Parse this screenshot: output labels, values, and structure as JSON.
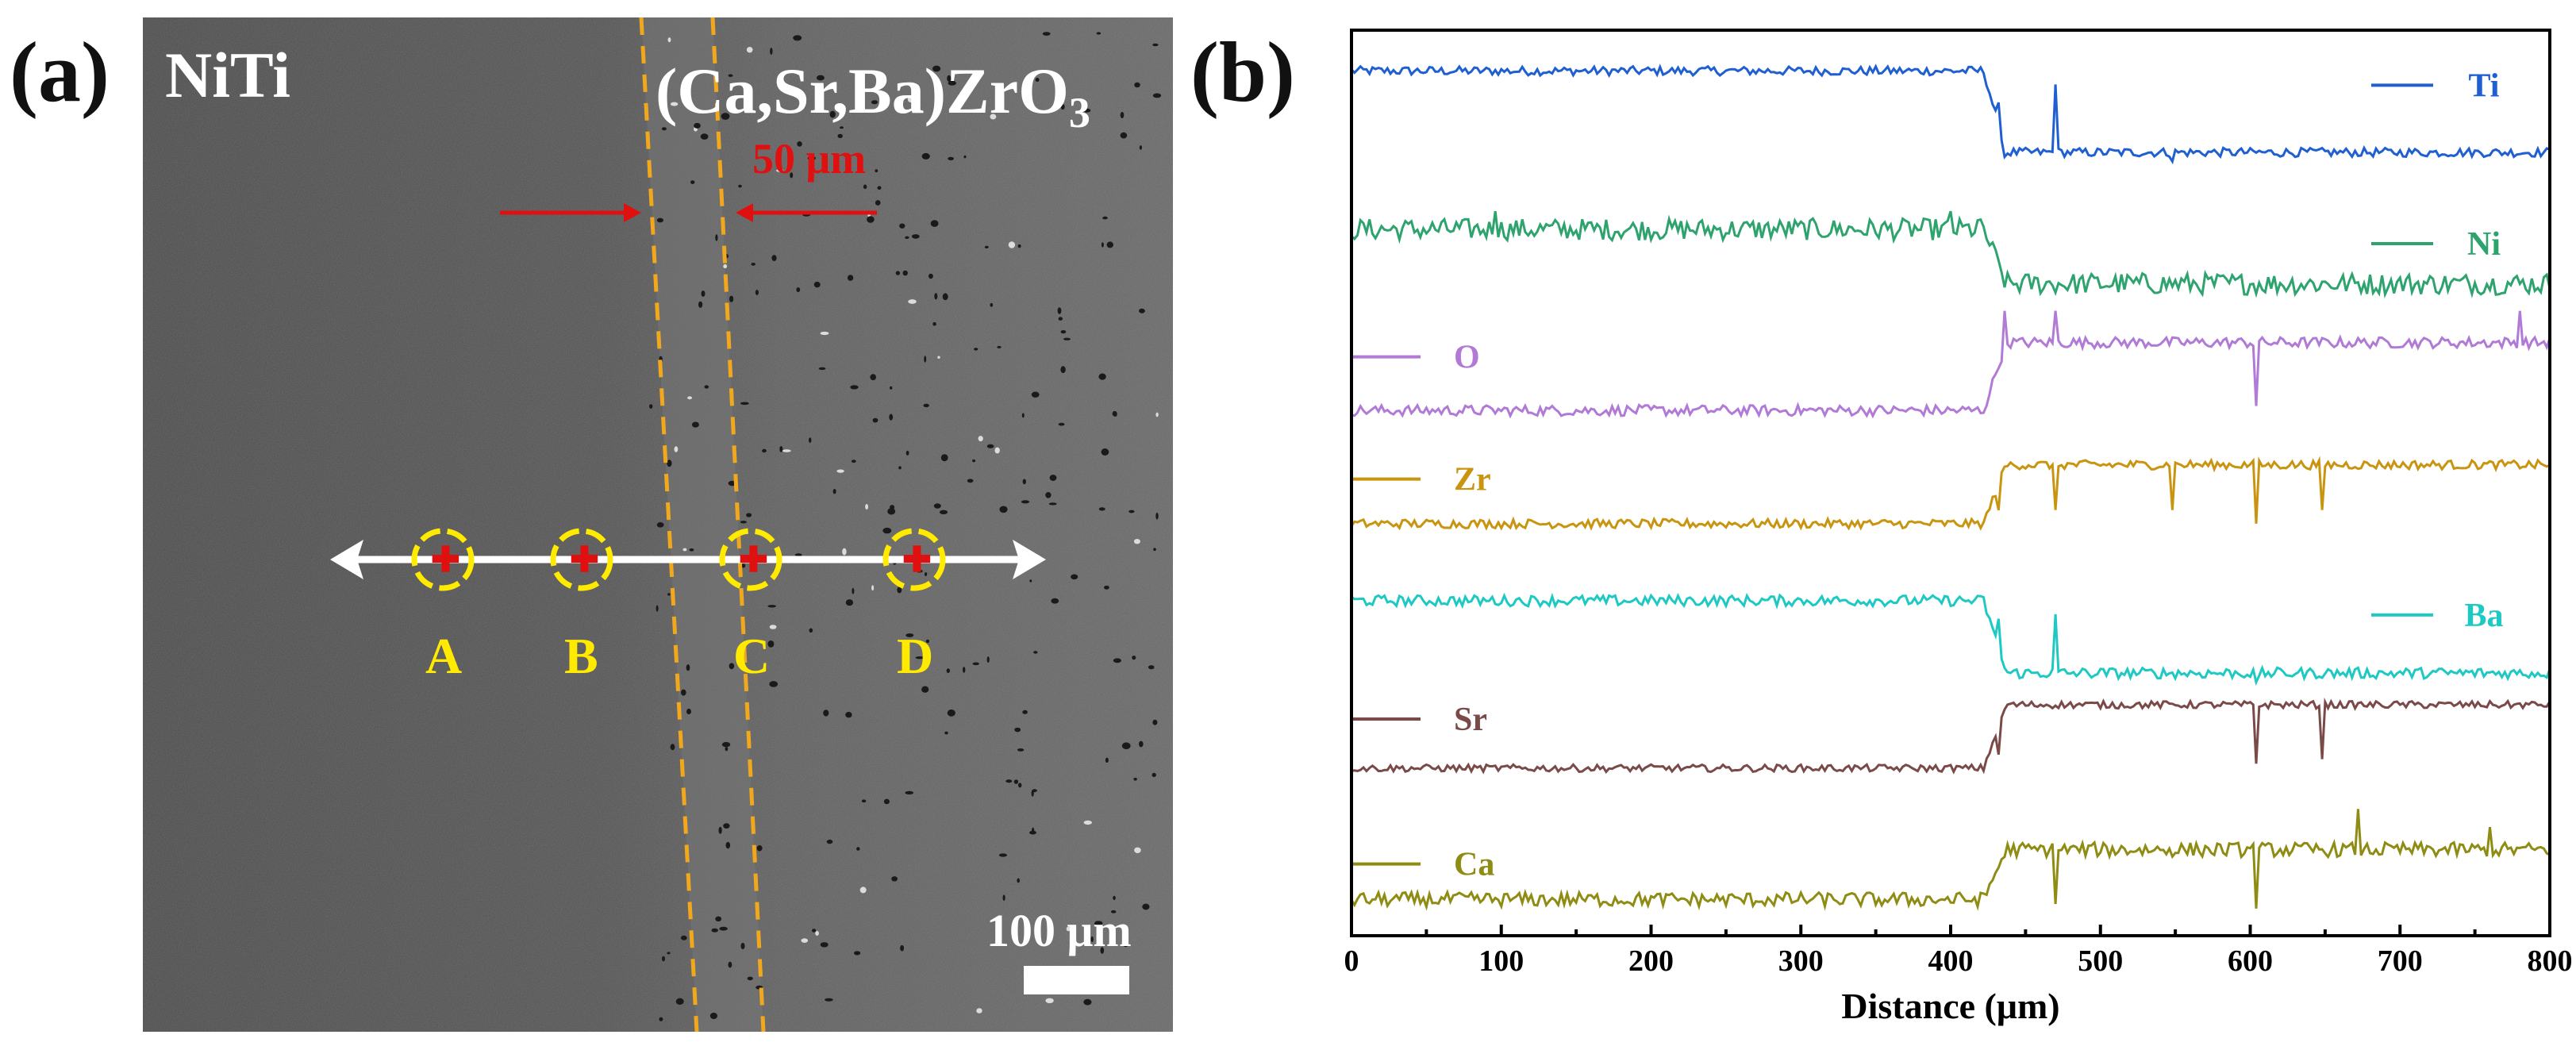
{
  "panel_a": {
    "label": "(a)",
    "title_left": "NiTi",
    "title_right": "(Ca,Sr,Ba)ZrO",
    "title_right_sub": "3",
    "interface_width": "50 μm",
    "scale_bar": "100 μm",
    "points": [
      "A",
      "B",
      "C",
      "D"
    ],
    "colors": {
      "arrow": "#ffffff",
      "point": "#e01010",
      "ring": "#ffea00",
      "interface_line": "#f2a81d",
      "width_arrow": "#e01010"
    }
  },
  "panel_b": {
    "label": "(b)"
  },
  "chart_data": {
    "type": "line",
    "title": "",
    "xlabel": "Distance (μm)",
    "ylabel": "",
    "xlim": [
      0,
      800
    ],
    "xticks": [
      0,
      100,
      200,
      300,
      400,
      500,
      600,
      700,
      800
    ],
    "interface_x": 425,
    "series": [
      {
        "name": "Ti",
        "color": "#1f5fd1",
        "left_level": 0.955,
        "right_level": 0.865,
        "noise": 0.005,
        "legend": "right",
        "spikes": [
          [
            432,
            0.92
          ],
          [
            436,
            0.86
          ],
          [
            470,
            0.94
          ],
          [
            548,
            0.855
          ]
        ]
      },
      {
        "name": "Ni",
        "color": "#2ea36e",
        "left_level": 0.78,
        "right_level": 0.72,
        "noise": 0.012,
        "legend": "right",
        "spikes": [
          [
            95,
            0.8
          ],
          [
            400,
            0.8
          ],
          [
            418,
            0.79
          ]
        ]
      },
      {
        "name": "O",
        "color": "#b07ad6",
        "left_level": 0.58,
        "right_level": 0.655,
        "noise": 0.006,
        "legend": "left",
        "spikes": [
          [
            435,
            0.69
          ],
          [
            470,
            0.69
          ],
          [
            603,
            0.585
          ],
          [
            780,
            0.69
          ]
        ]
      },
      {
        "name": "Zr",
        "color": "#c99510",
        "left_level": 0.455,
        "right_level": 0.52,
        "noise": 0.005,
        "legend": "left",
        "spikes": [
          [
            432,
            0.47
          ],
          [
            470,
            0.47
          ],
          [
            548,
            0.47
          ],
          [
            603,
            0.455
          ],
          [
            648,
            0.47
          ]
        ]
      },
      {
        "name": "Ba",
        "color": "#1ec9c4",
        "left_level": 0.37,
        "right_level": 0.29,
        "noise": 0.006,
        "legend": "right",
        "spikes": [
          [
            432,
            0.35
          ],
          [
            470,
            0.355
          ],
          [
            603,
            0.28
          ]
        ]
      },
      {
        "name": "Sr",
        "color": "#7a4a48",
        "left_level": 0.185,
        "right_level": 0.255,
        "noise": 0.004,
        "legend": "left",
        "spikes": [
          [
            432,
            0.2
          ],
          [
            603,
            0.19
          ],
          [
            648,
            0.195
          ]
        ]
      },
      {
        "name": "Ca",
        "color": "#8f8c14",
        "left_level": 0.04,
        "right_level": 0.095,
        "noise": 0.008,
        "legend": "left",
        "spikes": [
          [
            470,
            0.035
          ],
          [
            603,
            0.03
          ],
          [
            672,
            0.14
          ],
          [
            760,
            0.12
          ]
        ]
      }
    ]
  }
}
